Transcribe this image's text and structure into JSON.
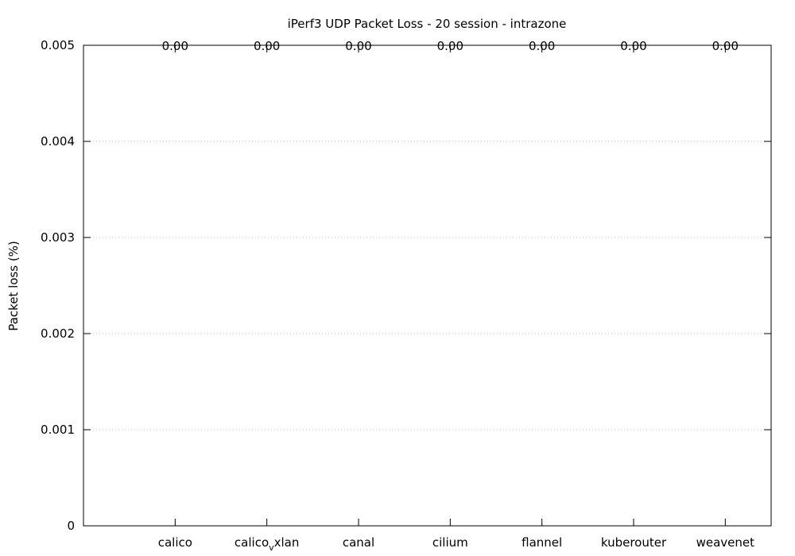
{
  "chart_data": {
    "type": "bar",
    "title": "iPerf3 UDP Packet Loss - 20 session - intrazone",
    "ylabel": "Packet loss (%)",
    "categories": [
      "calico",
      "calico_vxlan",
      "canal",
      "cilium",
      "flannel",
      "kuberouter",
      "weavenet"
    ],
    "category_labels": [
      {
        "main": "calico",
        "sub": "",
        "rest": ""
      },
      {
        "main": "calico",
        "sub": "v",
        "rest": "xlan"
      },
      {
        "main": "canal",
        "sub": "",
        "rest": ""
      },
      {
        "main": "cilium",
        "sub": "",
        "rest": ""
      },
      {
        "main": "flannel",
        "sub": "",
        "rest": ""
      },
      {
        "main": "kuberouter",
        "sub": "",
        "rest": ""
      },
      {
        "main": "weavenet",
        "sub": "",
        "rest": ""
      }
    ],
    "values": [
      0,
      0,
      0,
      0,
      0,
      0,
      0
    ],
    "value_labels": [
      "0.00",
      "0.00",
      "0.00",
      "0.00",
      "0.00",
      "0.00",
      "0.00"
    ],
    "ylim": [
      0,
      0.005
    ],
    "yticks": [
      0,
      0.001,
      0.002,
      0.003,
      0.004,
      0.005
    ],
    "ytick_labels": [
      "0",
      "0.001",
      "0.002",
      "0.003",
      "0.004",
      "0.005"
    ],
    "grid": true,
    "bar_color": "#9400d3"
  }
}
